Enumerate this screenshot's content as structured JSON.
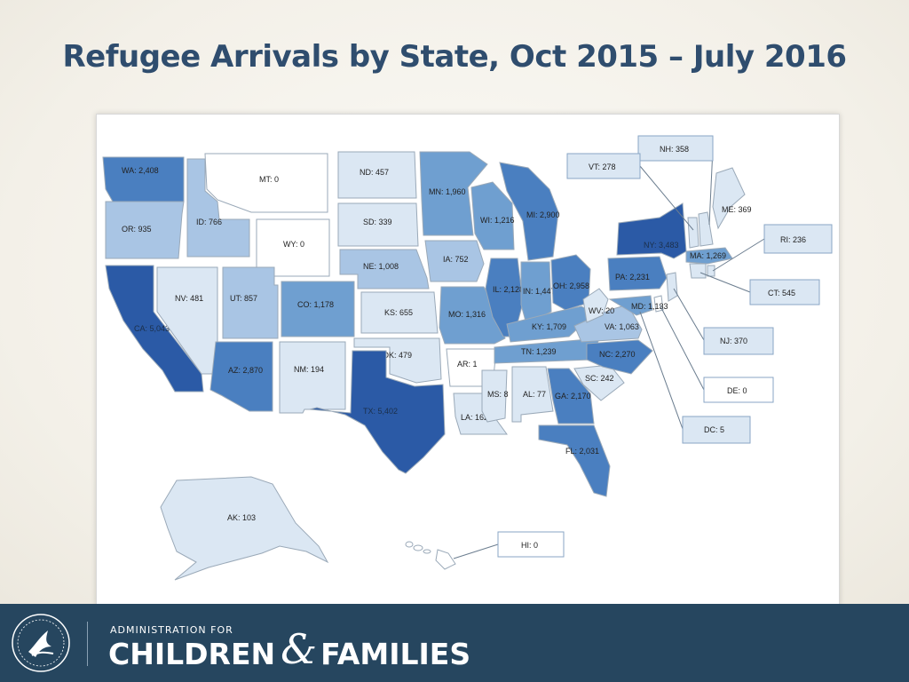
{
  "title": "Refugee Arrivals by State, Oct 2015 – July 2016",
  "footer": {
    "admin_for": "ADMINISTRATION FOR",
    "children": "CHILDREN",
    "amp": "&",
    "families": "FAMILIES"
  },
  "map": {
    "legend_colors": {
      "lowest": "#ffffff",
      "low": "#dbe7f3",
      "mid_low": "#a9c5e4",
      "mid": "#6f9fd0",
      "mid_high": "#4a7fc0",
      "high": "#2b5aa6"
    },
    "states": [
      {
        "code": "WA",
        "label": "WA: 2,408",
        "value": 2408
      },
      {
        "code": "OR",
        "label": "OR: 935",
        "value": 935
      },
      {
        "code": "CA",
        "label": "CA: 5,043",
        "value": 5043
      },
      {
        "code": "ID",
        "label": "ID: 766",
        "value": 766
      },
      {
        "code": "NV",
        "label": "NV: 481",
        "value": 481
      },
      {
        "code": "MT",
        "label": "MT: 0",
        "value": 0
      },
      {
        "code": "WY",
        "label": "WY: 0",
        "value": 0
      },
      {
        "code": "UT",
        "label": "UT: 857",
        "value": 857
      },
      {
        "code": "AZ",
        "label": "AZ: 2,870",
        "value": 2870
      },
      {
        "code": "CO",
        "label": "CO: 1,178",
        "value": 1178
      },
      {
        "code": "NM",
        "label": "NM: 194",
        "value": 194
      },
      {
        "code": "ND",
        "label": "ND: 457",
        "value": 457
      },
      {
        "code": "SD",
        "label": "SD: 339",
        "value": 339
      },
      {
        "code": "NE",
        "label": "NE: 1,008",
        "value": 1008
      },
      {
        "code": "KS",
        "label": "KS: 655",
        "value": 655
      },
      {
        "code": "OK",
        "label": "OK: 479",
        "value": 479
      },
      {
        "code": "TX",
        "label": "TX: 5,402",
        "value": 5402
      },
      {
        "code": "MN",
        "label": "MN: 1,960",
        "value": 1960
      },
      {
        "code": "IA",
        "label": "IA: 752",
        "value": 752
      },
      {
        "code": "MO",
        "label": "MO: 1,316",
        "value": 1316
      },
      {
        "code": "AR",
        "label": "AR: 1",
        "value": 1
      },
      {
        "code": "LA",
        "label": "LA: 162",
        "value": 162
      },
      {
        "code": "WI",
        "label": "WI: 1,216",
        "value": 1216
      },
      {
        "code": "IL",
        "label": "IL: 2,128",
        "value": 2128
      },
      {
        "code": "MI",
        "label": "MI: 2,900",
        "value": 2900
      },
      {
        "code": "IN",
        "label": "IN: 1,447",
        "value": 1447
      },
      {
        "code": "OH",
        "label": "OH: 2,958",
        "value": 2958
      },
      {
        "code": "KY",
        "label": "KY: 1,709",
        "value": 1709
      },
      {
        "code": "TN",
        "label": "TN: 1,239",
        "value": 1239
      },
      {
        "code": "MS",
        "label": "MS: 8",
        "value": 8
      },
      {
        "code": "AL",
        "label": "AL: 77",
        "value": 77
      },
      {
        "code": "GA",
        "label": "GA: 2,170",
        "value": 2170
      },
      {
        "code": "FL",
        "label": "FL: 2,031",
        "value": 2031
      },
      {
        "code": "SC",
        "label": "SC: 242",
        "value": 242
      },
      {
        "code": "NC",
        "label": "NC: 2,270",
        "value": 2270
      },
      {
        "code": "VA",
        "label": "VA: 1,063",
        "value": 1063
      },
      {
        "code": "WV",
        "label": "WV: 20",
        "value": 20
      },
      {
        "code": "MD",
        "label": "MD: 1,133",
        "value": 1133
      },
      {
        "code": "PA",
        "label": "PA: 2,231",
        "value": 2231
      },
      {
        "code": "NY",
        "label": "NY: 3,483",
        "value": 3483
      },
      {
        "code": "ME",
        "label": "ME: 369",
        "value": 369
      },
      {
        "code": "MA",
        "label": "MA: 1,269",
        "value": 1269
      },
      {
        "code": "AK",
        "label": "AK: 103",
        "value": 103
      }
    ],
    "callouts": [
      {
        "code": "NH",
        "label": "NH: 358",
        "value": 358
      },
      {
        "code": "VT",
        "label": "VT: 278",
        "value": 278
      },
      {
        "code": "RI",
        "label": "RI: 236",
        "value": 236
      },
      {
        "code": "CT",
        "label": "CT: 545",
        "value": 545
      },
      {
        "code": "NJ",
        "label": "NJ: 370",
        "value": 370
      },
      {
        "code": "DE",
        "label": "DE: 0",
        "value": 0
      },
      {
        "code": "DC",
        "label": "DC: 5",
        "value": 5
      },
      {
        "code": "HI",
        "label": "HI: 0",
        "value": 0
      }
    ]
  }
}
